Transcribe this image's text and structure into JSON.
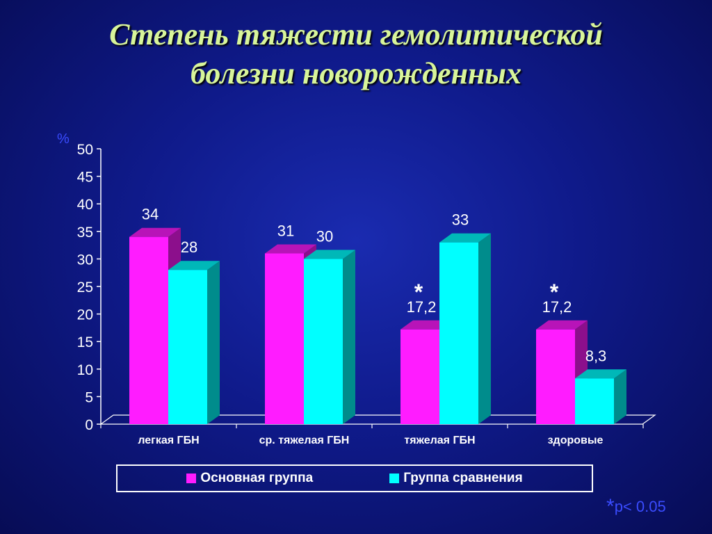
{
  "title_line1": "Степень тяжести гемолитической",
  "title_line2": "болезни новорожденных",
  "footnote": {
    "star": "*",
    "text": "p< 0.05"
  },
  "chart_data": {
    "type": "bar",
    "ylabel": "%",
    "ylim": [
      0,
      50
    ],
    "yticks": [
      0,
      5,
      10,
      15,
      20,
      25,
      30,
      35,
      40,
      45,
      50
    ],
    "categories": [
      "легкая ГБН",
      "ср. тяжелая ГБН",
      "тяжелая ГБН",
      "здоровые"
    ],
    "series": [
      {
        "name": "Основная группа",
        "color": "#ff1cff",
        "values": [
          34,
          31,
          17.2,
          17.2
        ],
        "labels": [
          "34",
          "31",
          "17,2",
          "17,2"
        ],
        "marks": [
          "",
          "",
          "*",
          "*"
        ]
      },
      {
        "name": "Группа сравнения",
        "color": "#00ffff",
        "values": [
          28,
          30,
          33,
          8.3
        ],
        "labels": [
          "28",
          "30",
          "33",
          "8,3"
        ],
        "marks": [
          "",
          "",
          "",
          ""
        ]
      }
    ],
    "legend_position": "bottom",
    "grid": false
  }
}
